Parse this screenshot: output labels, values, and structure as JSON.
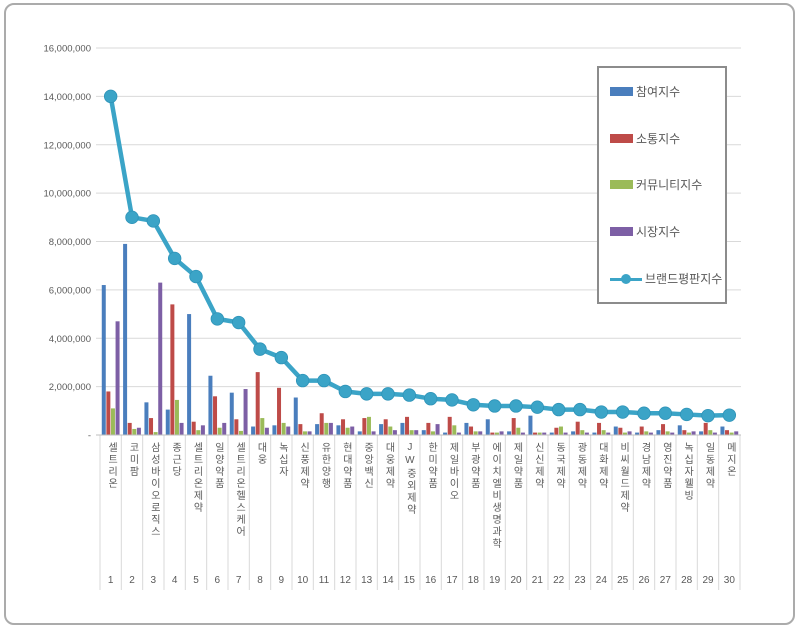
{
  "colors": {
    "participation_blue": "#4A7EBD",
    "communication_red": "#BE4B48",
    "community_green": "#9BBB59",
    "market_purple": "#7D5FA5",
    "reputation_teal": "#3BA4C7",
    "grid": "#d9d9d9",
    "axis_baseline": "#bfbfbf",
    "text": "#595959"
  },
  "chart_data": {
    "type": "bar",
    "subtype": "grouped-bar-with-line-overlay",
    "title": "",
    "xlabel": "",
    "ylabel": "",
    "grid": true,
    "legend_position": "top-right",
    "y_axis": {
      "min": 0,
      "max": 16000000,
      "step": 2000000,
      "tick_labels": [
        "16,000,000",
        "14,000,000",
        "12,000,000",
        "10,000,000",
        "8,000,000",
        "6,000,000",
        "4,000,000",
        "2,000,000",
        "-"
      ]
    },
    "ranks": [
      "1",
      "2",
      "3",
      "4",
      "5",
      "6",
      "7",
      "8",
      "9",
      "10",
      "11",
      "12",
      "13",
      "14",
      "15",
      "16",
      "17",
      "18",
      "19",
      "20",
      "21",
      "22",
      "23",
      "24",
      "25",
      "26",
      "27",
      "28",
      "29",
      "30"
    ],
    "categories": [
      "셀트리온",
      "코미팜",
      "삼성바이오로직스",
      "종근당",
      "셀트리온제약",
      "일양약품",
      "셀트리온헬스케어",
      "대웅",
      "녹십자",
      "신풍제약",
      "유한양행",
      "현대약품",
      "중앙백신",
      "대웅제약",
      "JW중외제약",
      "한미약품",
      "제일바이오",
      "부광약품",
      "에이치엘비생명과학",
      "제일약품",
      "신신제약",
      "동국제약",
      "광동제약",
      "대화제약",
      "비씨월드제약",
      "경남제약",
      "영진약품",
      "녹십자웰빙",
      "일동제약",
      "메지온"
    ],
    "series": [
      {
        "name": "참여지수",
        "type": "bar",
        "color": "#4A7EBD",
        "values": [
          6200000,
          7900000,
          1350000,
          1050000,
          5000000,
          2450000,
          1750000,
          350000,
          400000,
          1550000,
          450000,
          400000,
          150000,
          450000,
          500000,
          200000,
          100000,
          500000,
          650000,
          150000,
          800000,
          100000,
          150000,
          100000,
          350000,
          100000,
          200000,
          400000,
          150000,
          350000
        ]
      },
      {
        "name": "소통지수",
        "type": "bar",
        "color": "#BE4B48",
        "values": [
          1800000,
          500000,
          700000,
          5400000,
          550000,
          1600000,
          650000,
          2600000,
          1950000,
          450000,
          900000,
          650000,
          700000,
          650000,
          750000,
          500000,
          750000,
          350000,
          100000,
          700000,
          100000,
          300000,
          550000,
          500000,
          300000,
          350000,
          450000,
          200000,
          500000,
          200000
        ]
      },
      {
        "name": "커뮤니티지수",
        "type": "bar",
        "color": "#9BBB59",
        "values": [
          1100000,
          250000,
          120000,
          1450000,
          200000,
          300000,
          170000,
          700000,
          500000,
          150000,
          500000,
          300000,
          750000,
          350000,
          200000,
          150000,
          400000,
          150000,
          100000,
          300000,
          100000,
          350000,
          200000,
          200000,
          100000,
          150000,
          150000,
          100000,
          200000,
          100000
        ]
      },
      {
        "name": "시장지수",
        "type": "bar",
        "color": "#7D5FA5",
        "values": [
          4700000,
          300000,
          6300000,
          500000,
          400000,
          500000,
          1900000,
          300000,
          350000,
          150000,
          500000,
          350000,
          150000,
          200000,
          200000,
          450000,
          100000,
          150000,
          150000,
          100000,
          100000,
          100000,
          100000,
          100000,
          150000,
          100000,
          100000,
          150000,
          100000,
          150000
        ]
      },
      {
        "name": "브랜드평판지수",
        "type": "line",
        "color": "#3BA4C7",
        "values": [
          14000000,
          9000000,
          8850000,
          7300000,
          6550000,
          4800000,
          4650000,
          3550000,
          3200000,
          2250000,
          2250000,
          1800000,
          1700000,
          1700000,
          1650000,
          1500000,
          1450000,
          1250000,
          1200000,
          1200000,
          1150000,
          1050000,
          1050000,
          950000,
          950000,
          900000,
          900000,
          850000,
          800000,
          820000
        ]
      }
    ]
  }
}
